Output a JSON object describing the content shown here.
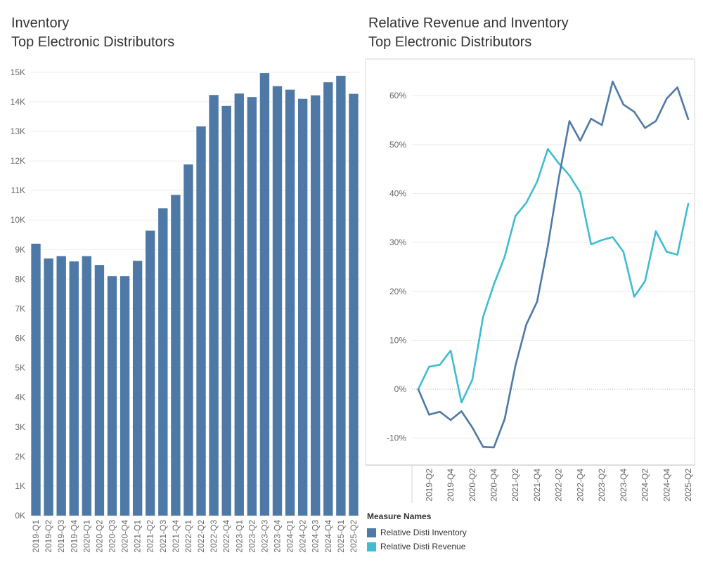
{
  "left_title": {
    "line1": "Inventory",
    "line2": "Top Electronic Distributors"
  },
  "right_title": {
    "line1": "Relative Revenue and Inventory",
    "line2": "Top Electronic Distributors"
  },
  "legend": {
    "title": "Measure Names",
    "items": [
      {
        "label": "Relative Disti Inventory",
        "color": "#4e79a7"
      },
      {
        "label": "Relative Disti Revenue",
        "color": "#3fbcd0"
      }
    ]
  },
  "chart_data": [
    {
      "type": "bar",
      "title": "Inventory Top Electronic Distributors",
      "categories": [
        "2019-Q1",
        "2019-Q2",
        "2019-Q3",
        "2019-Q4",
        "2020-Q1",
        "2020-Q2",
        "2020-Q3",
        "2020-Q4",
        "2021-Q1",
        "2021-Q2",
        "2021-Q3",
        "2021-Q4",
        "2022-Q1",
        "2022-Q2",
        "2022-Q3",
        "2022-Q4",
        "2023-Q1",
        "2023-Q2",
        "2023-Q3",
        "2023-Q4",
        "2024-Q1",
        "2024-Q2",
        "2024-Q3",
        "2024-Q4",
        "2025-Q1",
        "2025-Q2"
      ],
      "values": [
        9200,
        8700,
        8780,
        8600,
        8780,
        8480,
        8100,
        8100,
        8620,
        9640,
        10400,
        10850,
        11880,
        13170,
        14230,
        13860,
        14280,
        14160,
        14970,
        14530,
        14410,
        14100,
        14220,
        14660,
        14880,
        14270
      ],
      "ylim": [
        0,
        15400
      ],
      "yticks": [
        0,
        1000,
        2000,
        3000,
        4000,
        5000,
        6000,
        7000,
        8000,
        9000,
        10000,
        11000,
        12000,
        13000,
        14000,
        15000
      ],
      "ytick_labels": [
        "0K",
        "1K",
        "2K",
        "3K",
        "4K",
        "5K",
        "6K",
        "7K",
        "8K",
        "9K",
        "10K",
        "11K",
        "12K",
        "13K",
        "14K",
        "15K"
      ],
      "color": "#4e79a7",
      "grid": true
    },
    {
      "type": "line",
      "title": "Relative Revenue and Inventory Top Electronic Distributors",
      "x": [
        "2019-Q1",
        "2019-Q2",
        "2019-Q3",
        "2019-Q4",
        "2020-Q1",
        "2020-Q2",
        "2020-Q3",
        "2020-Q4",
        "2021-Q1",
        "2021-Q2",
        "2021-Q3",
        "2021-Q4",
        "2022-Q1",
        "2022-Q2",
        "2022-Q3",
        "2022-Q4",
        "2023-Q1",
        "2023-Q2",
        "2023-Q3",
        "2023-Q4",
        "2024-Q1",
        "2024-Q2",
        "2024-Q3",
        "2024-Q4",
        "2025-Q1",
        "2025-Q2"
      ],
      "xtick_labels": [
        "2019-Q2",
        "2019-Q4",
        "2020-Q2",
        "2020-Q4",
        "2021-Q2",
        "2021-Q4",
        "2022-Q2",
        "2022-Q4",
        "2023-Q2",
        "2023-Q4",
        "2024-Q2",
        "2024-Q4",
        "2025-Q2"
      ],
      "series": [
        {
          "name": "Relative Disti Inventory",
          "color": "#4e79a7",
          "values": [
            0,
            -5.2,
            -4.6,
            -6.3,
            -4.5,
            -7.8,
            -11.8,
            -11.9,
            -6.1,
            4.8,
            13.2,
            17.9,
            29.3,
            43.0,
            54.8,
            50.8,
            55.3,
            54.0,
            62.9,
            58.2,
            56.7,
            53.4,
            54.8,
            59.4,
            61.7,
            55.2
          ]
        },
        {
          "name": "Relative Disti Revenue",
          "color": "#3fbcd0",
          "values": [
            0,
            4.6,
            5.0,
            7.9,
            -2.7,
            1.9,
            14.8,
            21.4,
            27.1,
            35.4,
            38.1,
            42.4,
            49.1,
            46.2,
            43.7,
            40.2,
            29.6,
            30.5,
            31.1,
            28.1,
            18.9,
            22.1,
            32.3,
            28.1,
            27.5,
            37.9
          ]
        }
      ],
      "ylim": [
        -15.5,
        67.5
      ],
      "yticks": [
        -10,
        0,
        10,
        20,
        30,
        40,
        50,
        60
      ],
      "ytick_labels": [
        "-10%",
        "0%",
        "10%",
        "20%",
        "30%",
        "40%",
        "50%",
        "60%"
      ],
      "grid": true,
      "legend_position": "bottom-left"
    }
  ]
}
